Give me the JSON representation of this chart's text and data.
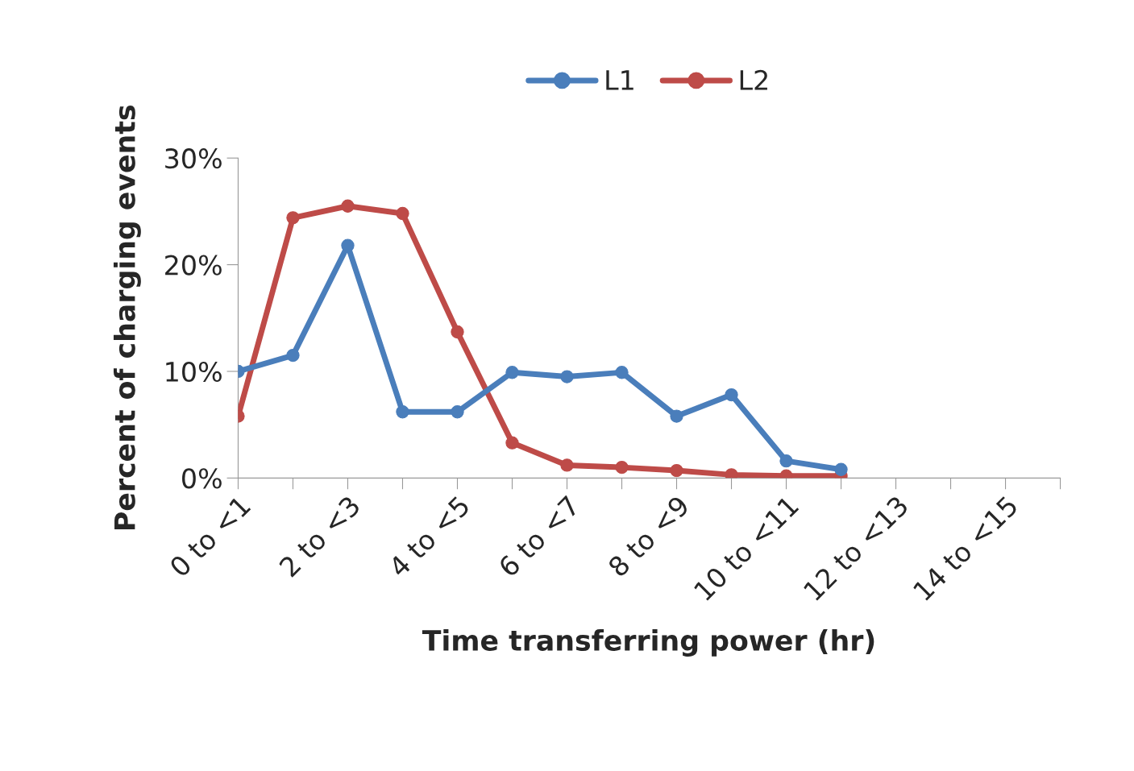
{
  "chart_data": {
    "type": "line",
    "xlabel": "Time transferring power (hr)",
    "ylabel": "Percent of charging events",
    "categories": [
      "0 to <1",
      null,
      "2 to <3",
      null,
      "4 to <5",
      null,
      "6 to <7",
      null,
      "8 to <9",
      null,
      "10 to <11",
      null,
      "12 to <13",
      null,
      "14 to <15",
      null
    ],
    "series": [
      {
        "name": "L1",
        "color": "#4a7ebb",
        "values": [
          10.0,
          11.5,
          21.8,
          6.2,
          6.2,
          9.9,
          9.5,
          9.9,
          5.8,
          7.8,
          1.6,
          0.8,
          null,
          null,
          null,
          null
        ]
      },
      {
        "name": "L2",
        "color": "#be4b48",
        "values": [
          5.8,
          24.4,
          25.5,
          24.8,
          13.7,
          3.3,
          1.2,
          1.0,
          0.7,
          0.3,
          0.2,
          0.2,
          null,
          null,
          null,
          null
        ]
      }
    ],
    "ylim": [
      0,
      30
    ],
    "yticks": [
      {
        "value": 0,
        "label": "0%"
      },
      {
        "value": 10,
        "label": "10%"
      },
      {
        "value": 20,
        "label": "20%"
      },
      {
        "value": 30,
        "label": "30%"
      }
    ],
    "grid": false,
    "legend": "top",
    "marker": "circle",
    "line_style": "solid"
  }
}
